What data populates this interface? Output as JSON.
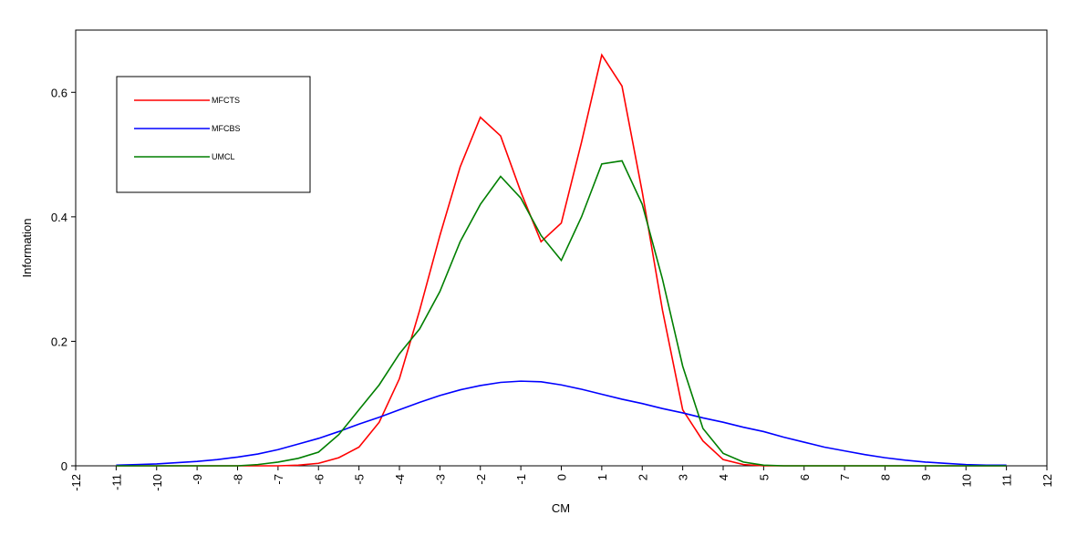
{
  "chart_data": {
    "type": "line",
    "xlabel": "CM",
    "ylabel": "Information",
    "x": [
      -11,
      -10.5,
      -10,
      -9.5,
      -9,
      -8.5,
      -8,
      -7.5,
      -7,
      -6.5,
      -6,
      -5.5,
      -5,
      -4.5,
      -4,
      -3.5,
      -3,
      -2.5,
      -2,
      -1.5,
      -1,
      -0.5,
      0,
      0.5,
      1,
      1.5,
      2,
      2.5,
      3,
      3.5,
      4,
      4.5,
      5,
      5.5,
      6,
      6.5,
      7,
      7.5,
      8,
      8.5,
      9,
      9.5,
      10,
      10.5,
      11
    ],
    "series": [
      {
        "name": "MFCTS",
        "color": "#ff0000",
        "values": [
          0,
          0,
          0,
          0,
          0,
          0,
          0,
          0,
          0,
          0.001,
          0.004,
          0.013,
          0.03,
          0.07,
          0.14,
          0.25,
          0.37,
          0.48,
          0.56,
          0.53,
          0.44,
          0.36,
          0.39,
          0.52,
          0.66,
          0.61,
          0.44,
          0.25,
          0.09,
          0.04,
          0.01,
          0.002,
          0,
          0,
          0,
          0,
          0,
          0,
          0,
          0,
          0,
          0,
          0,
          0,
          0
        ]
      },
      {
        "name": "MFCBS",
        "color": "#0000ff",
        "values": [
          0.001,
          0.002,
          0.003,
          0.005,
          0.007,
          0.01,
          0.014,
          0.019,
          0.026,
          0.035,
          0.044,
          0.055,
          0.067,
          0.078,
          0.09,
          0.102,
          0.113,
          0.122,
          0.129,
          0.134,
          0.136,
          0.135,
          0.13,
          0.123,
          0.115,
          0.107,
          0.1,
          0.092,
          0.085,
          0.077,
          0.07,
          0.062,
          0.055,
          0.046,
          0.038,
          0.03,
          0.024,
          0.018,
          0.013,
          0.009,
          0.006,
          0.004,
          0.002,
          0.001,
          0.001
        ]
      },
      {
        "name": "UMCL",
        "color": "#007f00",
        "values": [
          0,
          0,
          0,
          0,
          0,
          0,
          0,
          0.002,
          0.006,
          0.012,
          0.022,
          0.05,
          0.09,
          0.13,
          0.18,
          0.22,
          0.28,
          0.36,
          0.42,
          0.465,
          0.43,
          0.37,
          0.33,
          0.4,
          0.485,
          0.49,
          0.42,
          0.3,
          0.16,
          0.06,
          0.02,
          0.006,
          0.001,
          0,
          0,
          0,
          0,
          0,
          0,
          0,
          0,
          0,
          0,
          0,
          0
        ]
      }
    ],
    "xlim": [
      -12,
      12
    ],
    "xticks": [
      -12,
      -11,
      -10,
      -9,
      -8,
      -7,
      -6,
      -5,
      -4,
      -3,
      -2,
      -1,
      0,
      1,
      2,
      3,
      4,
      5,
      6,
      7,
      8,
      9,
      10,
      11,
      12
    ],
    "ylim": [
      0,
      0.7
    ],
    "yticks": [
      0,
      0.2,
      0.4,
      0.6
    ],
    "legend": "upper left"
  }
}
